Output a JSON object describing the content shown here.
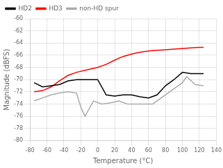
{
  "chart_data": {
    "type": "line",
    "xlabel": "Temperature (°C)",
    "ylabel": "Magnitude (dBFS)",
    "xlim": [
      -80,
      140
    ],
    "ylim": [
      -80,
      -60
    ],
    "xticks": [
      -80,
      -60,
      -40,
      -20,
      0,
      20,
      40,
      60,
      80,
      100,
      120,
      140
    ],
    "yticks": [
      -80,
      -78,
      -76,
      -74,
      -72,
      -70,
      -68,
      -66,
      -64,
      -62,
      -60
    ],
    "grid": true,
    "legend": "upper left",
    "series": [
      {
        "name": "HD2",
        "color": "#000000",
        "x": [
          -75,
          -65,
          -55,
          -45,
          -35,
          -25,
          -10,
          0,
          10,
          20,
          30,
          40,
          50,
          60,
          70,
          80,
          90,
          100,
          110,
          120,
          125
        ],
        "values": [
          -70.5,
          -71.2,
          -71.0,
          -70.8,
          -70.2,
          -70.0,
          -70.0,
          -70.0,
          -72.5,
          -72.7,
          -72.5,
          -72.5,
          -72.8,
          -73.0,
          -72.5,
          -71.0,
          -70.0,
          -68.8,
          -69.0,
          -69.0,
          -69.0
        ]
      },
      {
        "name": "HD3",
        "color": "#ff0000",
        "x": [
          -75,
          -65,
          -55,
          -45,
          -35,
          -25,
          -10,
          0,
          10,
          20,
          30,
          40,
          50,
          60,
          70,
          80,
          90,
          100,
          110,
          120,
          125
        ],
        "values": [
          -72.0,
          -71.8,
          -71.2,
          -70.2,
          -69.3,
          -68.8,
          -68.3,
          -68.0,
          -67.5,
          -66.8,
          -66.2,
          -65.8,
          -65.5,
          -65.3,
          -65.2,
          -65.1,
          -65.0,
          -64.9,
          -64.8,
          -64.7,
          -64.7
        ]
      },
      {
        "name": "non-HD spur",
        "color": "#aaaaaa",
        "x": [
          -75,
          -65,
          -55,
          -45,
          -35,
          -25,
          -20,
          -15,
          -5,
          5,
          15,
          25,
          35,
          45,
          55,
          65,
          75,
          90,
          100,
          105,
          115,
          125
        ],
        "values": [
          -73.5,
          -73.0,
          -72.5,
          -72.2,
          -72.0,
          -72.2,
          -74.5,
          -76.0,
          -73.5,
          -74.0,
          -73.8,
          -73.5,
          -74.0,
          -74.0,
          -74.0,
          -74.0,
          -73.0,
          -71.5,
          -70.5,
          -69.5,
          -70.8,
          -71.0
        ]
      }
    ]
  }
}
